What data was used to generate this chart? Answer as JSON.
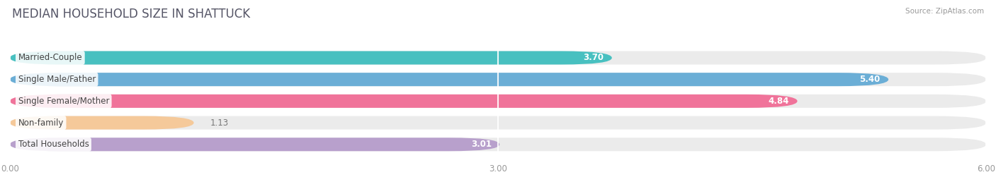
{
  "title": "MEDIAN HOUSEHOLD SIZE IN SHATTUCK",
  "source": "Source: ZipAtlas.com",
  "categories": [
    "Married-Couple",
    "Single Male/Father",
    "Single Female/Mother",
    "Non-family",
    "Total Households"
  ],
  "values": [
    3.7,
    5.4,
    4.84,
    1.13,
    3.01
  ],
  "bar_colors": [
    "#48C0C0",
    "#6BAED6",
    "#F0739A",
    "#F5C99A",
    "#B8A0CC"
  ],
  "bar_bg_color": "#EBEBEB",
  "xlim": [
    0,
    6.0
  ],
  "xticks": [
    0.0,
    3.0,
    6.0
  ],
  "xtick_labels": [
    "0.00",
    "3.00",
    "6.00"
  ],
  "label_fontsize": 8.5,
  "value_fontsize": 8.5,
  "title_fontsize": 12,
  "bar_height": 0.62,
  "fig_width": 14.06,
  "fig_height": 2.68,
  "background_color": "#FFFFFF",
  "value_inside_color": "white",
  "value_outside_color": "#777777"
}
